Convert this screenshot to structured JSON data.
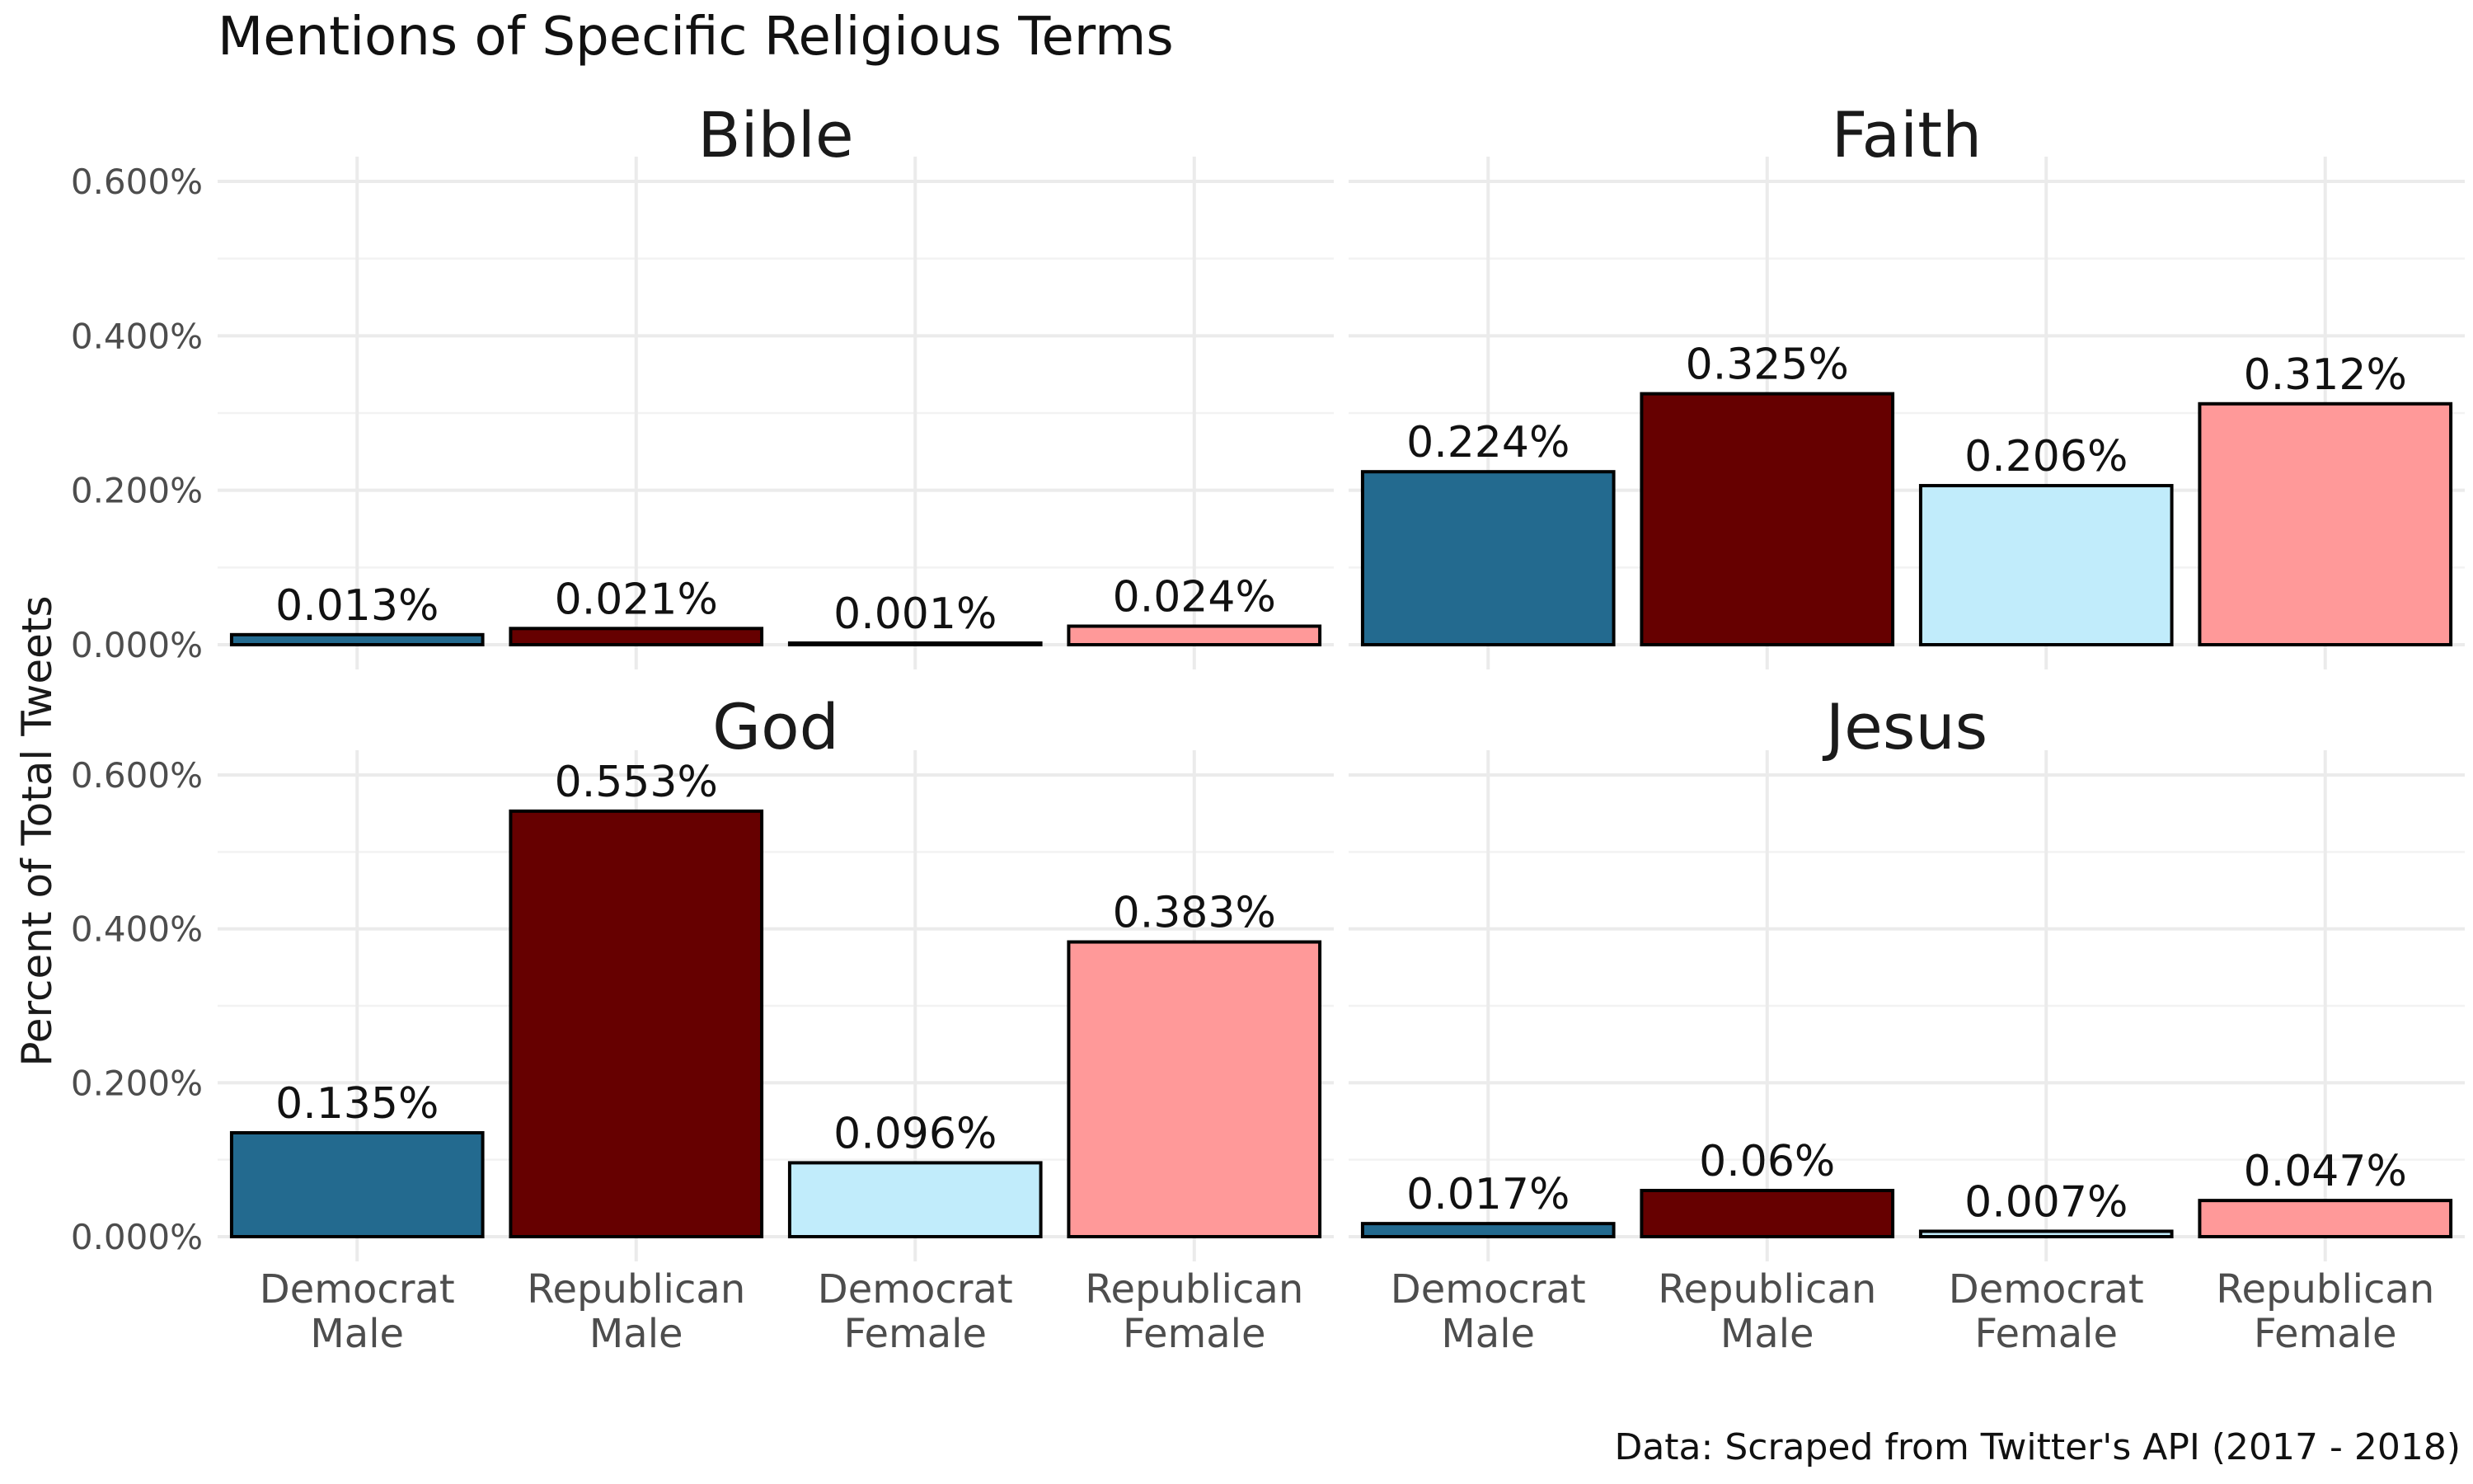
{
  "chart_data": {
    "type": "bar",
    "title": "Mentions of Specific Religious Terms",
    "ylabel": "Percent of Total Tweets",
    "xlabel": "",
    "caption": "Data: Scraped from Twitter's API (2017 - 2018)",
    "ylim": [
      0,
      0.006
    ],
    "yticks": [
      0,
      0.002,
      0.004,
      0.006
    ],
    "ytick_labels": [
      "0.000%",
      "0.200%",
      "0.400%",
      "0.600%"
    ],
    "grid": true,
    "categories": [
      {
        "line1": "Democrat",
        "line2": "Male",
        "color": "#236a8f"
      },
      {
        "line1": "Republican",
        "line2": "Male",
        "color": "#660000"
      },
      {
        "line1": "Democrat",
        "line2": "Female",
        "color": "#c1ecfb"
      },
      {
        "line1": "Republican",
        "line2": "Female",
        "color": "#ff9999"
      }
    ],
    "facets": [
      {
        "name": "Bible",
        "values": [
          0.00013,
          0.00021,
          1e-05,
          0.00024
        ],
        "labels": [
          "0.013%",
          "0.021%",
          "0.001%",
          "0.024%"
        ]
      },
      {
        "name": "Faith",
        "values": [
          0.00224,
          0.00325,
          0.00206,
          0.00312
        ],
        "labels": [
          "0.224%",
          "0.325%",
          "0.206%",
          "0.312%"
        ]
      },
      {
        "name": "God",
        "values": [
          0.00135,
          0.00553,
          0.00096,
          0.00383
        ],
        "labels": [
          "0.135%",
          "0.553%",
          "0.096%",
          "0.383%"
        ]
      },
      {
        "name": "Jesus",
        "values": [
          0.00017,
          0.0006,
          7e-05,
          0.00047
        ],
        "labels": [
          "0.017%",
          "0.06%",
          "0.007%",
          "0.047%"
        ]
      }
    ]
  }
}
